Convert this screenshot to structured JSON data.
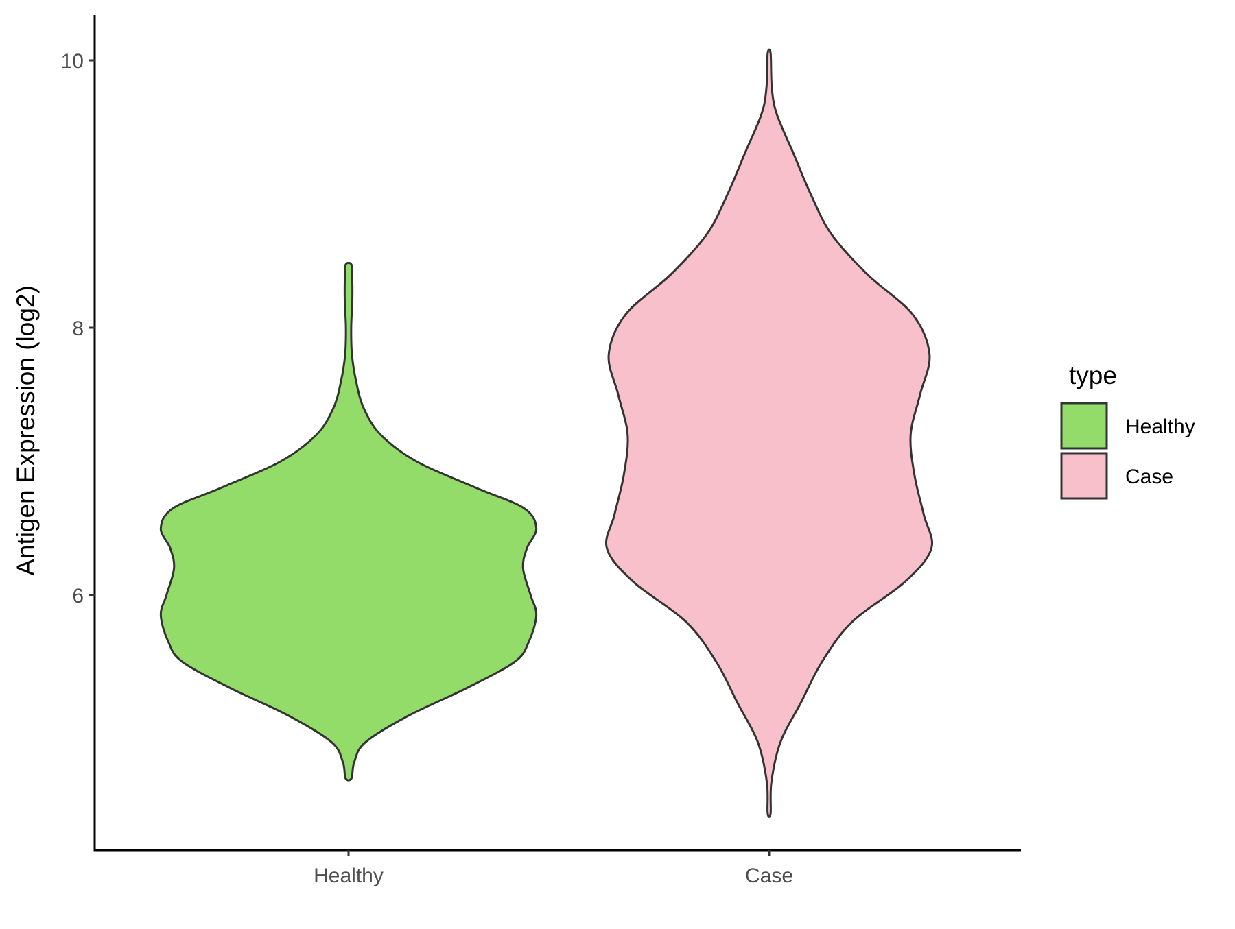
{
  "chart_data": {
    "type": "violin",
    "title": "",
    "xlabel": "",
    "ylabel": "Antigen Expression (log2)",
    "categories": [
      "Healthy",
      "Case"
    ],
    "yticks": [
      6,
      8,
      10
    ],
    "ylim": [
      4.2,
      10.35
    ],
    "grid": false,
    "legend": {
      "title": "type",
      "position": "right",
      "entries": [
        {
          "label": "Healthy",
          "color": "#93DC6A"
        },
        {
          "label": "Case",
          "color": "#F7C0CB"
        }
      ]
    },
    "series": [
      {
        "category": "Healthy",
        "color": "#93DC6A",
        "range": [
          4.63,
          8.47
        ],
        "density_profile": [
          [
            4.63,
            0.016
          ],
          [
            4.75,
            0.03
          ],
          [
            4.9,
            0.09
          ],
          [
            5.1,
            0.32
          ],
          [
            5.3,
            0.62
          ],
          [
            5.5,
            0.88
          ],
          [
            5.65,
            0.955
          ],
          [
            5.85,
            0.995
          ],
          [
            6.0,
            0.965
          ],
          [
            6.2,
            0.925
          ],
          [
            6.35,
            0.945
          ],
          [
            6.5,
            0.995
          ],
          [
            6.65,
            0.93
          ],
          [
            6.8,
            0.68
          ],
          [
            7.0,
            0.36
          ],
          [
            7.2,
            0.17
          ],
          [
            7.4,
            0.08
          ],
          [
            7.6,
            0.04
          ],
          [
            7.8,
            0.018
          ],
          [
            8.0,
            0.014
          ],
          [
            8.2,
            0.02
          ],
          [
            8.35,
            0.02
          ],
          [
            8.47,
            0.016
          ]
        ]
      },
      {
        "category": "Case",
        "color": "#F7C0CB",
        "range": [
          4.37,
          10.05
        ],
        "density_profile": [
          [
            4.37,
            0.008
          ],
          [
            4.6,
            0.012
          ],
          [
            4.9,
            0.06
          ],
          [
            5.2,
            0.17
          ],
          [
            5.5,
            0.28
          ],
          [
            5.8,
            0.44
          ],
          [
            6.1,
            0.72
          ],
          [
            6.35,
            0.86
          ],
          [
            6.6,
            0.82
          ],
          [
            6.9,
            0.77
          ],
          [
            7.2,
            0.75
          ],
          [
            7.5,
            0.8
          ],
          [
            7.8,
            0.85
          ],
          [
            8.1,
            0.76
          ],
          [
            8.4,
            0.52
          ],
          [
            8.7,
            0.33
          ],
          [
            9.0,
            0.22
          ],
          [
            9.3,
            0.13
          ],
          [
            9.6,
            0.04
          ],
          [
            9.8,
            0.014
          ],
          [
            10.05,
            0.008
          ]
        ]
      }
    ]
  }
}
